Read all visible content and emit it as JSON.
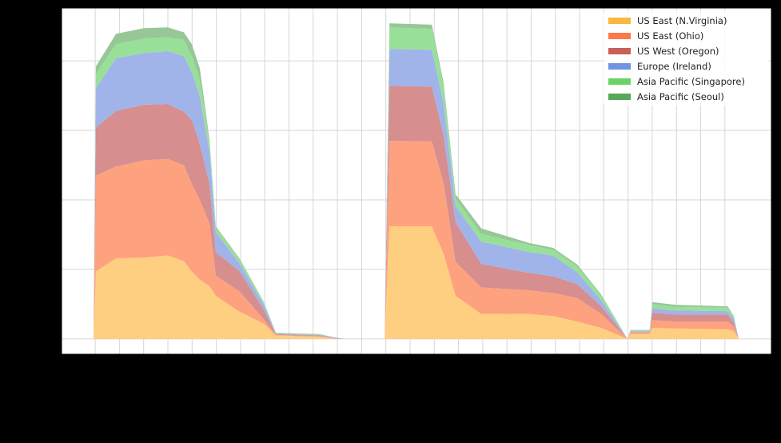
{
  "chart_data": {
    "type": "area",
    "stacked": true,
    "title": "",
    "xlabel": "",
    "ylabel": "",
    "x_tick_labels_visible": false,
    "y_tick_labels_visible": false,
    "grid": true,
    "legend_position": "upper right",
    "xlim": [
      -1.39,
      27.92
    ],
    "ylim": [
      -0.22,
      4.76
    ],
    "x_gridlines": [
      0,
      1,
      2,
      3,
      4,
      5,
      6,
      7,
      8,
      9,
      10,
      11,
      12,
      13,
      14,
      15,
      16,
      17,
      18,
      19,
      20,
      21,
      22,
      23,
      24,
      25,
      26
    ],
    "y_gridlines": [
      0,
      1,
      2,
      3,
      4
    ],
    "x": [
      -0.07,
      0.03,
      0.86,
      2.01,
      3.0,
      3.66,
      3.99,
      4.32,
      4.72,
      4.98,
      5.97,
      6.96,
      7.46,
      9.27,
      9.93,
      10.33,
      11.95,
      12.15,
      13.9,
      14.39,
      14.88,
      15.94,
      17.92,
      18.91,
      19.9,
      20.89,
      21.98,
      22.1,
      22.9,
      23.0,
      23.96,
      26.11,
      26.37,
      26.57
    ],
    "series": [
      {
        "name": "US East (N.Virginia)",
        "color": "#f9b840",
        "fill": "#fecf80",
        "values": [
          0,
          0.97,
          1.16,
          1.17,
          1.2,
          1.12,
          0.97,
          0.85,
          0.76,
          0.62,
          0.39,
          0.22,
          0.05,
          0.03,
          0.0,
          0,
          0,
          1.62,
          1.62,
          1.22,
          0.62,
          0.36,
          0.36,
          0.33,
          0.25,
          0.16,
          0,
          0.07,
          0.07,
          0.16,
          0.15,
          0.14,
          0.11,
          0
        ]
      },
      {
        "name": "US East (Ohio)",
        "color": "#fd7a48",
        "fill": "#fea17e",
        "values": [
          0,
          1.38,
          1.32,
          1.4,
          1.39,
          1.38,
          1.26,
          1.15,
          0.9,
          0.29,
          0.29,
          0.06,
          0.01,
          0.01,
          0.01,
          0,
          0,
          1.23,
          1.22,
          1.01,
          0.49,
          0.38,
          0.34,
          0.33,
          0.34,
          0.2,
          0,
          0.02,
          0.02,
          0.11,
          0.1,
          0.11,
          0.07,
          0
        ]
      },
      {
        "name": "US West (Oregon)",
        "color": "#c7605a",
        "fill": "#d68e8e",
        "values": [
          0,
          0.69,
          0.8,
          0.8,
          0.79,
          0.77,
          0.92,
          0.8,
          0.57,
          0.34,
          0.29,
          0.14,
          0.01,
          0.01,
          0.0,
          0,
          0,
          0.79,
          0.79,
          0.69,
          0.57,
          0.34,
          0.25,
          0.24,
          0.2,
          0.11,
          0,
          0.01,
          0.01,
          0.11,
          0.1,
          0.1,
          0.06,
          0
        ]
      },
      {
        "name": "Europe (Ireland)",
        "color": "#7193e2",
        "fill": "#a0b4ea",
        "values": [
          0,
          0.57,
          0.76,
          0.74,
          0.76,
          0.8,
          0.69,
          0.69,
          0.46,
          0.29,
          0.11,
          0.07,
          0.01,
          0.01,
          0.01,
          0,
          0,
          0.53,
          0.53,
          0.46,
          0.23,
          0.32,
          0.3,
          0.3,
          0.17,
          0.09,
          0,
          0.01,
          0.01,
          0.06,
          0.06,
          0.05,
          0.05,
          0
        ]
      },
      {
        "name": "Asia Pacific (Singapore)",
        "color": "#68d468",
        "fill": "#98e098",
        "values": [
          0,
          0.2,
          0.2,
          0.21,
          0.2,
          0.23,
          0.23,
          0.23,
          0.11,
          0.06,
          0.05,
          0.03,
          0.01,
          0.01,
          0.0,
          0,
          0,
          0.31,
          0.3,
          0.23,
          0.11,
          0.11,
          0.1,
          0.08,
          0.08,
          0.06,
          0,
          0.01,
          0.01,
          0.06,
          0.05,
          0.05,
          0.03,
          0
        ]
      },
      {
        "name": "Asia Pacific (Seoul)",
        "color": "#5aa65a",
        "fill": "#97c797",
        "values": [
          0,
          0.11,
          0.15,
          0.15,
          0.14,
          0.11,
          0.17,
          0.17,
          0.06,
          0.02,
          0.02,
          0.01,
          0.0,
          0.0,
          0.0,
          0,
          0,
          0.06,
          0.06,
          0.06,
          0.06,
          0.08,
          0.03,
          0.03,
          0.03,
          0.02,
          0,
          0.01,
          0.01,
          0.03,
          0.03,
          0.02,
          0.01,
          0
        ]
      }
    ]
  },
  "legend": {
    "items": [
      {
        "label": "US East (N.Virginia)",
        "color": "#f9b840"
      },
      {
        "label": "US East (Ohio)",
        "color": "#fd7a48"
      },
      {
        "label": "US West (Oregon)",
        "color": "#c7605a"
      },
      {
        "label": "Europe (Ireland)",
        "color": "#7193e2"
      },
      {
        "label": "Asia Pacific (Singapore)",
        "color": "#68d468"
      },
      {
        "label": "Asia Pacific (Seoul)",
        "color": "#5aa65a"
      }
    ]
  }
}
